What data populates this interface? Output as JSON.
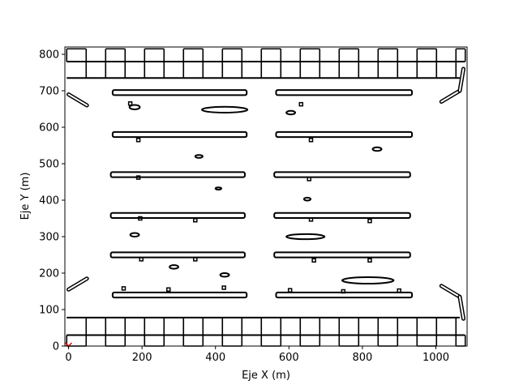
{
  "chart_data": {
    "type": "occupancy-map",
    "xlabel": "Eje X (m)",
    "ylabel": "Eje Y (m)",
    "xlim": [
      -10,
      1085
    ],
    "ylim": [
      0,
      820
    ],
    "xticks": [
      0,
      200,
      400,
      600,
      800,
      1000
    ],
    "yticks": [
      0,
      100,
      200,
      300,
      400,
      500,
      600,
      700,
      800
    ],
    "xtick_labels": [
      "0",
      "200",
      "400",
      "600",
      "800",
      "1000"
    ],
    "ytick_labels": [
      "0",
      "100",
      "200",
      "300",
      "400",
      "500",
      "600",
      "700",
      "800"
    ],
    "origin_marker": {
      "x": 0,
      "y": 0,
      "color": "#ff0000"
    },
    "parking_rows": [
      {
        "y": 695,
        "x_ranges": [
          [
            120,
            485
          ],
          [
            565,
            935
          ]
        ]
      },
      {
        "y": 580,
        "x_ranges": [
          [
            120,
            485
          ],
          [
            565,
            935
          ]
        ]
      },
      {
        "y": 470,
        "x_ranges": [
          [
            115,
            480
          ],
          [
            560,
            930
          ]
        ]
      },
      {
        "y": 358,
        "x_ranges": [
          [
            115,
            480
          ],
          [
            560,
            930
          ]
        ]
      },
      {
        "y": 250,
        "x_ranges": [
          [
            115,
            480
          ],
          [
            560,
            930
          ]
        ]
      },
      {
        "y": 140,
        "x_ranges": [
          [
            120,
            485
          ],
          [
            565,
            935
          ]
        ]
      }
    ],
    "obstacles": [
      {
        "x": 180,
        "y": 655,
        "rx": 14,
        "ry": 6
      },
      {
        "x": 425,
        "y": 648,
        "rx": 62,
        "ry": 8
      },
      {
        "x": 605,
        "y": 640,
        "rx": 12,
        "ry": 5
      },
      {
        "x": 355,
        "y": 520,
        "rx": 10,
        "ry": 4
      },
      {
        "x": 840,
        "y": 540,
        "rx": 12,
        "ry": 5
      },
      {
        "x": 408,
        "y": 432,
        "rx": 8,
        "ry": 3
      },
      {
        "x": 650,
        "y": 403,
        "rx": 9,
        "ry": 4
      },
      {
        "x": 180,
        "y": 305,
        "rx": 12,
        "ry": 5
      },
      {
        "x": 645,
        "y": 300,
        "rx": 52,
        "ry": 7
      },
      {
        "x": 287,
        "y": 217,
        "rx": 12,
        "ry": 5
      },
      {
        "x": 425,
        "y": 195,
        "rx": 12,
        "ry": 5
      },
      {
        "x": 815,
        "y": 180,
        "rx": 70,
        "ry": 9
      }
    ],
    "small_marks": [
      {
        "x": 168,
        "y": 665
      },
      {
        "x": 633,
        "y": 663
      },
      {
        "x": 190,
        "y": 565
      },
      {
        "x": 660,
        "y": 565
      },
      {
        "x": 190,
        "y": 462
      },
      {
        "x": 655,
        "y": 458
      },
      {
        "x": 195,
        "y": 350
      },
      {
        "x": 345,
        "y": 345
      },
      {
        "x": 660,
        "y": 347
      },
      {
        "x": 820,
        "y": 343
      },
      {
        "x": 198,
        "y": 238
      },
      {
        "x": 345,
        "y": 238
      },
      {
        "x": 668,
        "y": 235
      },
      {
        "x": 820,
        "y": 235
      },
      {
        "x": 150,
        "y": 158
      },
      {
        "x": 272,
        "y": 155
      },
      {
        "x": 423,
        "y": 160
      },
      {
        "x": 603,
        "y": 153
      },
      {
        "x": 748,
        "y": 150
      },
      {
        "x": 900,
        "y": 152
      }
    ],
    "curbs": [
      {
        "points": [
          [
            0,
            690
          ],
          [
            50,
            660
          ]
        ]
      },
      {
        "points": [
          [
            1015,
            670
          ],
          [
            1065,
            700
          ]
        ]
      },
      {
        "points": [
          [
            0,
            155
          ],
          [
            50,
            185
          ]
        ]
      },
      {
        "points": [
          [
            1015,
            165
          ],
          [
            1065,
            135
          ]
        ]
      }
    ],
    "vertical_curbs": [
      {
        "points": [
          [
            1065,
            700
          ],
          [
            1075,
            760
          ]
        ]
      },
      {
        "points": [
          [
            1065,
            135
          ],
          [
            1075,
            75
          ]
        ]
      }
    ]
  }
}
